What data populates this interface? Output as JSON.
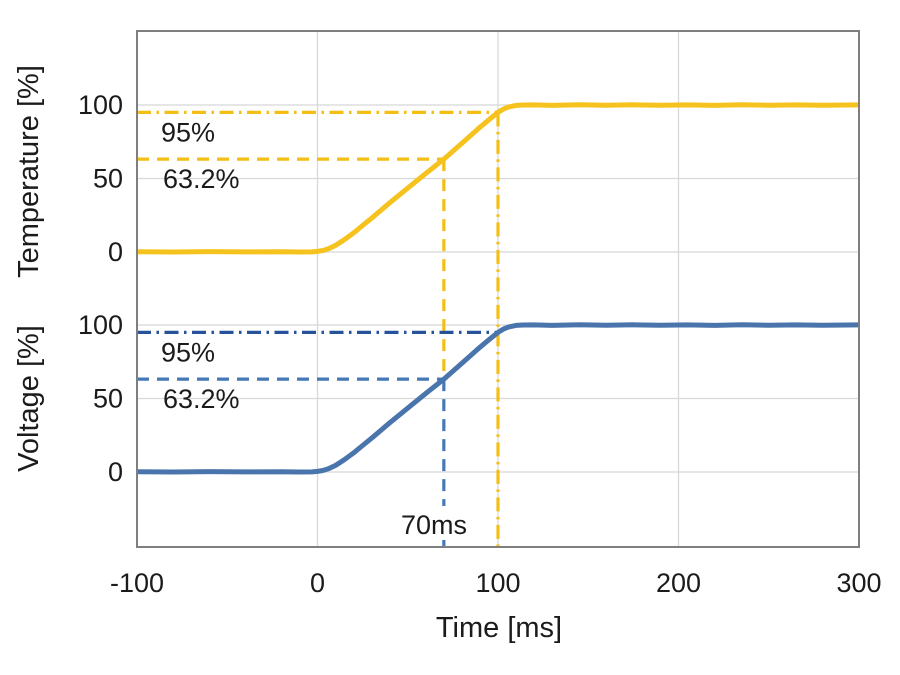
{
  "chart_data": {
    "type": "line",
    "title": "",
    "xlabel": "Time [ms]",
    "xlim": [
      -100,
      300
    ],
    "x_ticks": [
      -100,
      0,
      100,
      200,
      300
    ],
    "x_tick_labels": [
      "-100",
      "0",
      "100",
      "200",
      "300"
    ],
    "grid": true,
    "legend": "none",
    "colors": {
      "background": "#ffffff",
      "grid": "#d8d8d8",
      "frame": "#7f7f7f",
      "text": "#1b1b1b",
      "temperature_line": "#f6c21d",
      "temperature_dash": "#f4be15",
      "voltage_line": "#4a74ac",
      "voltage_dash": "#4677b7",
      "voltage_dashdot": "#27529b"
    },
    "panels": [
      {
        "name": "temperature",
        "ylabel": "Temperature [%]",
        "y_ticks": [
          100,
          50,
          0
        ],
        "y_tick_labels": [
          "100",
          "50",
          "0"
        ],
        "ylim_percent": [
          0,
          100
        ]
      },
      {
        "name": "voltage",
        "ylabel": "Voltage [%]",
        "y_ticks": [
          100,
          50,
          0
        ],
        "y_tick_labels": [
          "100",
          "50",
          "0"
        ],
        "ylim_percent": [
          0,
          100
        ]
      }
    ],
    "markers": {
      "tau_ms": 70,
      "tau_level_percent": 63.2,
      "tau_label": "63.2%",
      "settle_ms": 100,
      "settle_level_percent": 95,
      "settle_label": "95%",
      "time_label": "70ms"
    },
    "series": [
      {
        "name": "Temperature",
        "panel": "temperature",
        "unit": "percent",
        "points": [
          [
            -100,
            0.2
          ],
          [
            -80,
            0
          ],
          [
            -60,
            0.25
          ],
          [
            -40,
            0.05
          ],
          [
            -20,
            0.2
          ],
          [
            -10,
            0
          ],
          [
            -3,
            0.1
          ],
          [
            0,
            0.4
          ],
          [
            3,
            1
          ],
          [
            6,
            2.2
          ],
          [
            10,
            4.5
          ],
          [
            15,
            8.5
          ],
          [
            20,
            13
          ],
          [
            25,
            18
          ],
          [
            30,
            23
          ],
          [
            40,
            33.5
          ],
          [
            50,
            43.5
          ],
          [
            60,
            53.5
          ],
          [
            70,
            63.2
          ],
          [
            80,
            74
          ],
          [
            90,
            84.8
          ],
          [
            95,
            90
          ],
          [
            100,
            95
          ],
          [
            103,
            97.2
          ],
          [
            106,
            98.7
          ],
          [
            110,
            99.7
          ],
          [
            114,
            100
          ],
          [
            120,
            100.1
          ],
          [
            130,
            99.7
          ],
          [
            145,
            100.2
          ],
          [
            160,
            99.8
          ],
          [
            175,
            100.15
          ],
          [
            190,
            99.8
          ],
          [
            205,
            100.1
          ],
          [
            220,
            99.75
          ],
          [
            235,
            100.2
          ],
          [
            250,
            99.85
          ],
          [
            265,
            100.1
          ],
          [
            280,
            99.8
          ],
          [
            300,
            100.1
          ]
        ]
      },
      {
        "name": "Voltage",
        "panel": "voltage",
        "unit": "percent",
        "points": [
          [
            -100,
            0.2
          ],
          [
            -80,
            0
          ],
          [
            -60,
            0.25
          ],
          [
            -40,
            0.05
          ],
          [
            -20,
            0.2
          ],
          [
            -10,
            0
          ],
          [
            -3,
            0.1
          ],
          [
            0,
            0.4
          ],
          [
            3,
            1
          ],
          [
            6,
            2.2
          ],
          [
            10,
            4.5
          ],
          [
            15,
            8.5
          ],
          [
            20,
            13
          ],
          [
            25,
            18
          ],
          [
            30,
            23
          ],
          [
            40,
            33.5
          ],
          [
            50,
            43.5
          ],
          [
            60,
            53.5
          ],
          [
            70,
            63.2
          ],
          [
            80,
            74
          ],
          [
            90,
            84.8
          ],
          [
            95,
            90
          ],
          [
            100,
            95
          ],
          [
            103,
            97.2
          ],
          [
            106,
            98.7
          ],
          [
            110,
            99.7
          ],
          [
            114,
            100
          ],
          [
            120,
            100.1
          ],
          [
            130,
            99.7
          ],
          [
            145,
            100.2
          ],
          [
            160,
            99.8
          ],
          [
            175,
            100.15
          ],
          [
            190,
            99.8
          ],
          [
            205,
            100.1
          ],
          [
            220,
            99.75
          ],
          [
            235,
            100.2
          ],
          [
            250,
            99.85
          ],
          [
            265,
            100.1
          ],
          [
            280,
            99.8
          ],
          [
            300,
            100.1
          ]
        ]
      }
    ]
  }
}
